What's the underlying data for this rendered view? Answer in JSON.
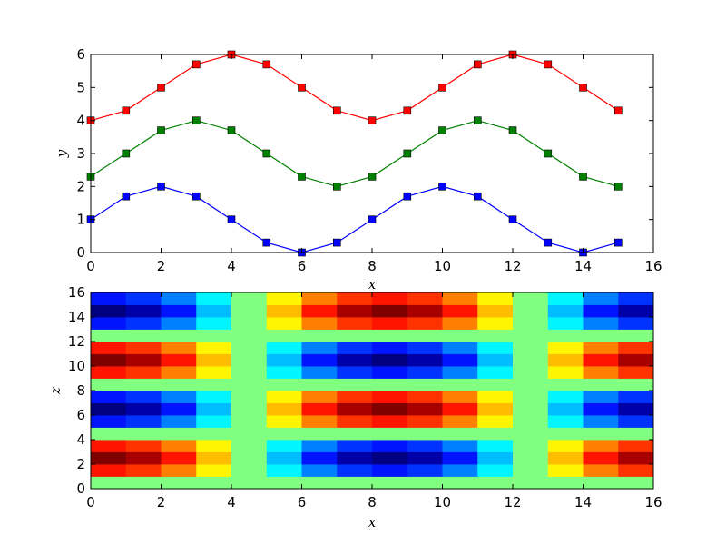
{
  "chart_data": [
    {
      "type": "line",
      "xlabel": "x",
      "ylabel": "y",
      "xlim": [
        0,
        16
      ],
      "ylim": [
        0,
        6
      ],
      "xticks": [
        "0",
        "2",
        "4",
        "6",
        "8",
        "10",
        "12",
        "14",
        "16"
      ],
      "yticks": [
        "0",
        "1",
        "2",
        "3",
        "4",
        "5",
        "6"
      ],
      "grid": false,
      "marker": "square",
      "x": [
        0,
        1,
        2,
        3,
        4,
        5,
        6,
        7,
        8,
        9,
        10,
        11,
        12,
        13,
        14,
        15
      ],
      "series": [
        {
          "color": "#0000ff",
          "values": [
            1.0,
            1.7,
            2.0,
            1.7,
            1.0,
            0.3,
            0.0,
            0.3,
            1.0,
            1.7,
            2.0,
            1.7,
            1.0,
            0.3,
            0.0,
            0.3
          ]
        },
        {
          "color": "#008000",
          "values": [
            2.3,
            3.0,
            3.7,
            4.0,
            3.7,
            3.0,
            2.3,
            2.0,
            2.3,
            3.0,
            3.7,
            4.0,
            3.7,
            3.0,
            2.3,
            2.0
          ]
        },
        {
          "color": "#ff0000",
          "values": [
            4.0,
            4.3,
            5.0,
            5.7,
            6.0,
            5.7,
            5.0,
            4.3,
            4.0,
            4.3,
            5.0,
            5.7,
            6.0,
            5.7,
            5.0,
            4.3
          ]
        }
      ]
    },
    {
      "type": "heatmap",
      "xlabel": "x",
      "ylabel": "z",
      "xlim": [
        0,
        16
      ],
      "ylim": [
        0,
        16
      ],
      "xticks": [
        "0",
        "2",
        "4",
        "6",
        "8",
        "10",
        "12",
        "14",
        "16"
      ],
      "yticks": [
        "0",
        "2",
        "4",
        "6",
        "8",
        "10",
        "12",
        "14",
        "16"
      ],
      "colormap": "jet",
      "vrange": [
        -1,
        1
      ],
      "note_values": "rows listed from z=0 (bottom) to z=15 (top), columns x=0..15",
      "rows": [
        [
          0,
          0,
          0,
          0,
          0,
          0,
          0,
          0,
          0,
          0,
          0,
          0,
          0,
          0,
          0,
          0
        ],
        [
          0.71,
          0.65,
          0.5,
          0.27,
          0,
          -0.27,
          -0.5,
          -0.65,
          -0.71,
          -0.65,
          -0.5,
          -0.27,
          0,
          0.27,
          0.5,
          0.65
        ],
        [
          1.0,
          0.92,
          0.71,
          0.38,
          0,
          -0.38,
          -0.71,
          -0.92,
          -1.0,
          -0.92,
          -0.71,
          -0.38,
          0,
          0.38,
          0.71,
          0.92
        ],
        [
          0.71,
          0.65,
          0.5,
          0.27,
          0,
          -0.27,
          -0.5,
          -0.65,
          -0.71,
          -0.65,
          -0.5,
          -0.27,
          0,
          0.27,
          0.5,
          0.65
        ],
        [
          0,
          0,
          0,
          0,
          0,
          0,
          0,
          0,
          0,
          0,
          0,
          0,
          0,
          0,
          0,
          0
        ],
        [
          -0.71,
          -0.65,
          -0.5,
          -0.27,
          0,
          0.27,
          0.5,
          0.65,
          0.71,
          0.65,
          0.5,
          0.27,
          0,
          -0.27,
          -0.5,
          -0.65
        ],
        [
          -1.0,
          -0.92,
          -0.71,
          -0.38,
          0,
          0.38,
          0.71,
          0.92,
          1.0,
          0.92,
          0.71,
          0.38,
          0,
          -0.38,
          -0.71,
          -0.92
        ],
        [
          -0.71,
          -0.65,
          -0.5,
          -0.27,
          0,
          0.27,
          0.5,
          0.65,
          0.71,
          0.65,
          0.5,
          0.27,
          0,
          -0.27,
          -0.5,
          -0.65
        ],
        [
          0,
          0,
          0,
          0,
          0,
          0,
          0,
          0,
          0,
          0,
          0,
          0,
          0,
          0,
          0,
          0
        ],
        [
          0.71,
          0.65,
          0.5,
          0.27,
          0,
          -0.27,
          -0.5,
          -0.65,
          -0.71,
          -0.65,
          -0.5,
          -0.27,
          0,
          0.27,
          0.5,
          0.65
        ],
        [
          1.0,
          0.92,
          0.71,
          0.38,
          0,
          -0.38,
          -0.71,
          -0.92,
          -1.0,
          -0.92,
          -0.71,
          -0.38,
          0,
          0.38,
          0.71,
          0.92
        ],
        [
          0.71,
          0.65,
          0.5,
          0.27,
          0,
          -0.27,
          -0.5,
          -0.65,
          -0.71,
          -0.65,
          -0.5,
          -0.27,
          0,
          0.27,
          0.5,
          0.65
        ],
        [
          0,
          0,
          0,
          0,
          0,
          0,
          0,
          0,
          0,
          0,
          0,
          0,
          0,
          0,
          0,
          0
        ],
        [
          -0.71,
          -0.65,
          -0.5,
          -0.27,
          0,
          0.27,
          0.5,
          0.65,
          0.71,
          0.65,
          0.5,
          0.27,
          0,
          -0.27,
          -0.5,
          -0.65
        ],
        [
          -1.0,
          -0.92,
          -0.71,
          -0.38,
          0,
          0.38,
          0.71,
          0.92,
          1.0,
          0.92,
          0.71,
          0.38,
          0,
          -0.38,
          -0.71,
          -0.92
        ],
        [
          -0.71,
          -0.65,
          -0.5,
          -0.27,
          0,
          0.27,
          0.5,
          0.65,
          0.71,
          0.65,
          0.5,
          0.27,
          0,
          -0.27,
          -0.5,
          -0.65
        ]
      ]
    }
  ]
}
